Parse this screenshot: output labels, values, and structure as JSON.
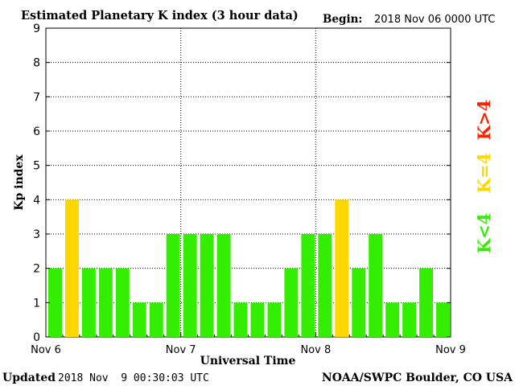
{
  "header": {
    "title": "Estimated Planetary K index (3 hour data)",
    "begin_label": "Begin:",
    "begin_value": "2018 Nov 06 0000 UTC"
  },
  "footer": {
    "updated_label": "Updated",
    "updated_value": "2018 Nov  9 00:30:03 UTC",
    "credit": "NOAA/SWPC Boulder, CO USA"
  },
  "legend": [
    {
      "label": "K>4",
      "color": "#ff2200"
    },
    {
      "label": "K=4",
      "color": "#ffd700"
    },
    {
      "label": "K<4",
      "color": "#33ee00"
    }
  ],
  "chart_data": {
    "type": "bar",
    "ylabel": "Kp index",
    "xlabel": "Universal Time",
    "ylim": [
      0,
      9
    ],
    "yticks": [
      0,
      1,
      2,
      3,
      4,
      5,
      6,
      7,
      8,
      9
    ],
    "xticks": [
      "Nov 6",
      "Nov 7",
      "Nov 8",
      "Nov 9"
    ],
    "grid": true,
    "bars_per_day": 8,
    "values": [
      2,
      4,
      2,
      2,
      2,
      1,
      1,
      3,
      3,
      3,
      3,
      1,
      1,
      1,
      2,
      3,
      3,
      4,
      2,
      3,
      1,
      1,
      2,
      1
    ],
    "colors": {
      "below_4": "#33ee00",
      "equal_4": "#ffd700",
      "above_4": "#ff2200"
    }
  }
}
